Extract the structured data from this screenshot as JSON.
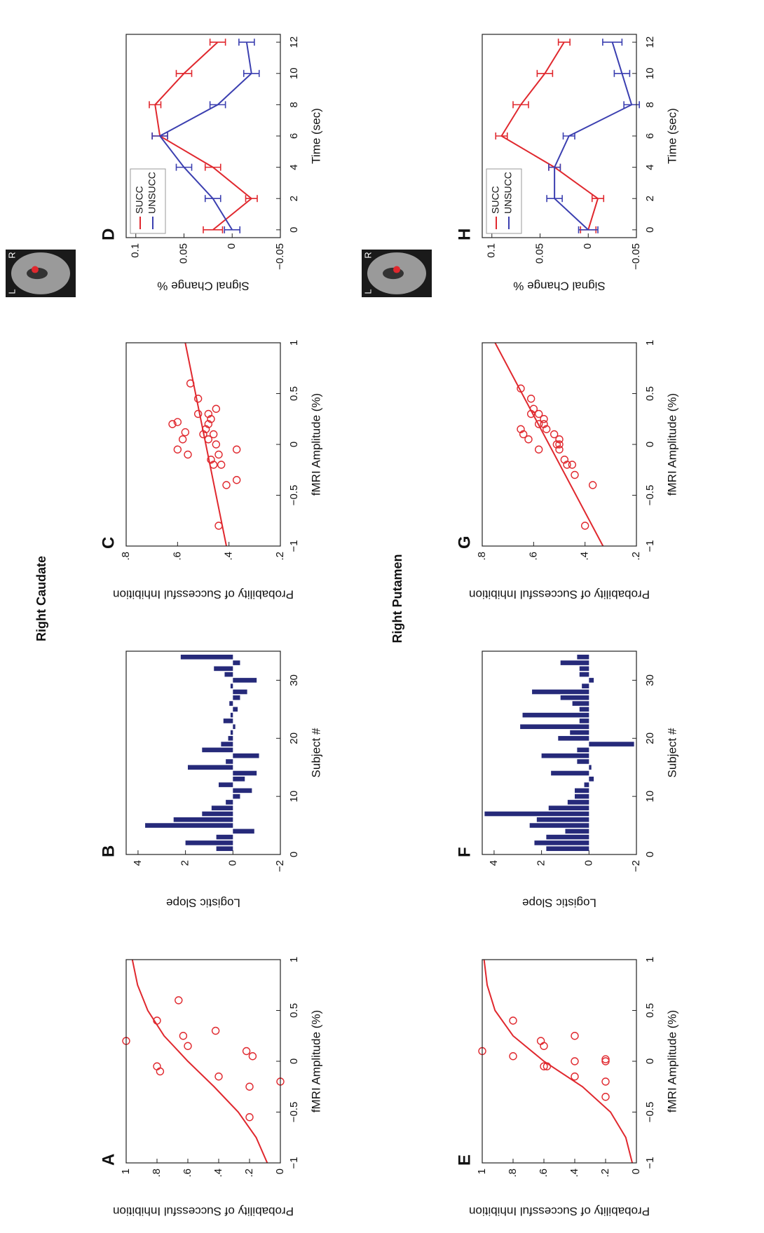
{
  "sections": [
    {
      "title": "Right Caudate",
      "left": "L",
      "right": "R"
    },
    {
      "title": "Right Putamen",
      "left": "L",
      "right": "R"
    }
  ],
  "chart_data": [
    {
      "type": "scatter",
      "label": "A",
      "xlabel": "fMRI Amplitude (%)",
      "ylabel": "Probability of Successful Inhibition",
      "color": "#e0282e",
      "x": [
        0.2,
        -0.1,
        -0.05,
        0.4,
        0.15,
        0.25,
        0.6,
        -0.15,
        0.3,
        -0.55,
        -0.25,
        0.05,
        0.1,
        -0.2
      ],
      "values": [
        1,
        0.78,
        0.8,
        0.8,
        0.6,
        0.63,
        0.66,
        0.4,
        0.42,
        0.2,
        0.2,
        0.18,
        0.22,
        0
      ],
      "fit_x": [
        -1,
        -0.75,
        -0.5,
        -0.25,
        0,
        0.25,
        0.5,
        0.75,
        1
      ],
      "fit_y": [
        0.085,
        0.157,
        0.273,
        0.43,
        0.6,
        0.754,
        0.86,
        0.926,
        0.96
      ],
      "xlim": [
        -1,
        1
      ],
      "ylim": [
        0,
        1
      ],
      "xticks": [
        {
          "value": -1,
          "label": "−1"
        },
        {
          "value": -0.5,
          "label": "−0.5"
        },
        0,
        0.5,
        1
      ],
      "yticks": [
        0,
        {
          "value": 0.2,
          "label": ".2"
        },
        {
          "value": 0.4,
          "label": ".4"
        },
        {
          "value": 0.6,
          "label": ".6"
        },
        {
          "value": 0.8,
          "label": ".8"
        },
        1
      ]
    },
    {
      "type": "bar",
      "label": "B",
      "xlabel": "Subject #",
      "ylabel": "Logistic Slope",
      "color": "#262a7a",
      "x": [
        1,
        2,
        3,
        4,
        5,
        6,
        7,
        8,
        9,
        10,
        11,
        12,
        13,
        14,
        15,
        16,
        17,
        18,
        19,
        20,
        21,
        22,
        23,
        24,
        25,
        26,
        27,
        28,
        29,
        30,
        31,
        32,
        33,
        34
      ],
      "values": [
        0.7,
        2.0,
        0.7,
        -0.9,
        3.7,
        2.5,
        1.3,
        0.9,
        0.3,
        -0.3,
        -0.8,
        0.6,
        -0.5,
        -1.0,
        1.9,
        0.3,
        -1.1,
        1.3,
        0.5,
        0.2,
        0.1,
        -0.1,
        0.4,
        0.1,
        -0.2,
        0.15,
        -0.3,
        -0.6,
        0.1,
        -1.0,
        0.35,
        0.8,
        -0.3,
        2.2
      ],
      "xlim": [
        0,
        35
      ],
      "ylim": [
        -2,
        4.5
      ],
      "xticks": [
        0,
        10,
        20,
        30
      ],
      "yticks": [
        {
          "value": -2,
          "label": "−2"
        },
        0,
        2,
        4
      ]
    },
    {
      "type": "scatter",
      "label": "C",
      "xlabel": "fMRI Amplitude (%)",
      "ylabel": "Probability of Successful Inhibition",
      "color": "#e0282e",
      "x": [
        -0.8,
        -0.4,
        -0.35,
        -0.05,
        -0.2,
        -0.1,
        -0.15,
        -0.2,
        0,
        0.1,
        0.05,
        0.15,
        0.2,
        0.25,
        0.3,
        0.35,
        0.1,
        0.3,
        0.45,
        0.6,
        0.05,
        0.12,
        -0.1,
        -0.05,
        0.22,
        0.2
      ],
      "values": [
        0.44,
        0.41,
        0.37,
        0.37,
        0.43,
        0.44,
        0.47,
        0.46,
        0.45,
        0.46,
        0.48,
        0.49,
        0.48,
        0.47,
        0.48,
        0.45,
        0.5,
        0.52,
        0.52,
        0.55,
        0.58,
        0.57,
        0.56,
        0.6,
        0.6,
        0.62
      ],
      "fit_x": [
        -1,
        1
      ],
      "fit_y": [
        0.41,
        0.57
      ],
      "xlim": [
        -1,
        1
      ],
      "ylim": [
        0.2,
        0.8
      ],
      "xticks": [
        {
          "value": -1,
          "label": "−1"
        },
        {
          "value": -0.5,
          "label": "−0.5"
        },
        0,
        0.5,
        1
      ],
      "yticks": [
        {
          "value": 0.2,
          "label": ".2"
        },
        {
          "value": 0.4,
          "label": ".4"
        },
        {
          "value": 0.6,
          "label": ".6"
        },
        {
          "value": 0.8,
          "label": ".8"
        }
      ]
    },
    {
      "type": "line",
      "label": "D",
      "xlabel": "Time (sec)",
      "ylabel": "Signal Change %",
      "x": [
        0,
        2,
        4,
        6,
        8,
        10,
        12
      ],
      "series": [
        {
          "name": "SUCC",
          "color": "#e0282e",
          "values": [
            0.02,
            -0.02,
            0.02,
            0.075,
            0.08,
            0.05,
            0.015
          ],
          "errors": [
            0.01,
            0.006,
            0.008,
            0.008,
            0.006,
            0.008,
            0.008
          ]
        },
        {
          "name": "UNSUCC",
          "color": "#3b3fb0",
          "values": [
            0.0,
            0.02,
            0.05,
            0.075,
            0.015,
            -0.02,
            -0.015
          ],
          "errors": [
            0.008,
            0.008,
            0.008,
            0.008,
            0.008,
            0.008,
            0.008
          ]
        }
      ],
      "xlim": [
        -0.5,
        12.5
      ],
      "ylim": [
        -0.05,
        0.11
      ],
      "xticks": [
        0,
        2,
        4,
        6,
        8,
        10,
        12
      ],
      "yticks": [
        {
          "value": -0.05,
          "label": "−0.05"
        },
        0,
        0.05,
        0.1
      ]
    },
    {
      "type": "scatter",
      "label": "E",
      "xlabel": "fMRI Amplitude (%)",
      "ylabel": "Probability of Successful Inhibition",
      "color": "#e0282e",
      "x": [
        0.1,
        0.05,
        0.4,
        -0.05,
        -0.05,
        0.15,
        0.2,
        0.25,
        0,
        -0.15,
        -0.2,
        -0.35,
        0,
        0.02
      ],
      "values": [
        1,
        0.8,
        0.8,
        0.6,
        0.58,
        0.6,
        0.62,
        0.4,
        0.4,
        0.4,
        0.2,
        0.2,
        0.2,
        0.2
      ],
      "fit_x": [
        -1,
        -0.75,
        -0.5,
        -0.25,
        0,
        0.25,
        0.5,
        0.75,
        1
      ],
      "fit_y": [
        0.027,
        0.069,
        0.168,
        0.35,
        0.6,
        0.8,
        0.917,
        0.968,
        0.988
      ],
      "xlim": [
        -1,
        1
      ],
      "ylim": [
        0,
        1
      ],
      "xticks": [
        {
          "value": -1,
          "label": "−1"
        },
        {
          "value": -0.5,
          "label": "−0.5"
        },
        0,
        0.5,
        1
      ],
      "yticks": [
        0,
        {
          "value": 0.2,
          "label": ".2"
        },
        {
          "value": 0.4,
          "label": ".4"
        },
        {
          "value": 0.6,
          "label": ".6"
        },
        {
          "value": 0.8,
          "label": ".8"
        },
        1
      ]
    },
    {
      "type": "bar",
      "label": "F",
      "xlabel": "Subject #",
      "ylabel": "Logistic Slope",
      "color": "#262a7a",
      "x": [
        1,
        2,
        3,
        4,
        5,
        6,
        7,
        8,
        9,
        10,
        11,
        12,
        13,
        14,
        15,
        16,
        17,
        18,
        19,
        20,
        21,
        22,
        23,
        24,
        25,
        26,
        27,
        28,
        29,
        30,
        31,
        32,
        33,
        34
      ],
      "values": [
        1.8,
        2.3,
        1.8,
        1.0,
        2.5,
        2.2,
        4.4,
        1.7,
        0.9,
        0.6,
        0.6,
        0.2,
        -0.2,
        1.6,
        -0.1,
        0.5,
        2.0,
        0.5,
        -1.9,
        1.3,
        0.8,
        2.9,
        0.4,
        2.8,
        0.4,
        0.7,
        1.2,
        2.4,
        0.3,
        -0.2,
        0.4,
        0.4,
        1.2,
        0.5
      ],
      "xlim": [
        0,
        35
      ],
      "ylim": [
        -2,
        4.5
      ],
      "xticks": [
        0,
        10,
        20,
        30
      ],
      "yticks": [
        {
          "value": -2,
          "label": "−2"
        },
        0,
        2,
        4
      ]
    },
    {
      "type": "scatter",
      "label": "G",
      "xlabel": "fMRI Amplitude (%)",
      "ylabel": "Probability of Successful Inhibition",
      "color": "#e0282e",
      "x": [
        -0.8,
        -0.4,
        -0.3,
        -0.2,
        -0.2,
        -0.15,
        0,
        0,
        -0.05,
        0.05,
        0.1,
        0.15,
        0.2,
        0.25,
        0.3,
        0.35,
        0.45,
        0.55,
        0.3,
        -0.05,
        0.05,
        0.1,
        0.15,
        0.2
      ],
      "values": [
        0.4,
        0.37,
        0.44,
        0.45,
        0.47,
        0.48,
        0.5,
        0.51,
        0.5,
        0.5,
        0.52,
        0.55,
        0.56,
        0.56,
        0.58,
        0.6,
        0.61,
        0.65,
        0.61,
        0.58,
        0.62,
        0.64,
        0.65,
        0.58
      ],
      "fit_x": [
        -1,
        1
      ],
      "fit_y": [
        0.33,
        0.75
      ],
      "xlim": [
        -1,
        1
      ],
      "ylim": [
        0.2,
        0.8
      ],
      "xticks": [
        {
          "value": -1,
          "label": "−1"
        },
        {
          "value": -0.5,
          "label": "−0.5"
        },
        0,
        0.5,
        1
      ],
      "yticks": [
        {
          "value": 0.2,
          "label": ".2"
        },
        {
          "value": 0.4,
          "label": ".4"
        },
        {
          "value": 0.6,
          "label": ".6"
        },
        {
          "value": 0.8,
          "label": ".8"
        }
      ]
    },
    {
      "type": "line",
      "label": "H",
      "xlabel": "Time (sec)",
      "ylabel": "Signal Change %",
      "x": [
        0,
        2,
        4,
        6,
        8,
        10,
        12
      ],
      "series": [
        {
          "name": "SUCC",
          "color": "#e0282e",
          "values": [
            0,
            -0.01,
            0.035,
            0.09,
            0.07,
            0.045,
            0.025
          ],
          "errors": [
            0.008,
            0.006,
            0.006,
            0.006,
            0.008,
            0.008,
            0.006
          ]
        },
        {
          "name": "UNSUCC",
          "color": "#3b3fb0",
          "values": [
            0,
            0.035,
            0.035,
            0.02,
            -0.045,
            -0.035,
            -0.025
          ],
          "errors": [
            0.01,
            0.008,
            0.006,
            0.006,
            0.008,
            0.008,
            0.01
          ]
        }
      ],
      "xlim": [
        -0.5,
        12.5
      ],
      "ylim": [
        -0.05,
        0.11
      ],
      "xticks": [
        0,
        2,
        4,
        6,
        8,
        10,
        12
      ],
      "yticks": [
        {
          "value": -0.05,
          "label": "−0.05"
        },
        0,
        0.05,
        0.1
      ]
    }
  ]
}
